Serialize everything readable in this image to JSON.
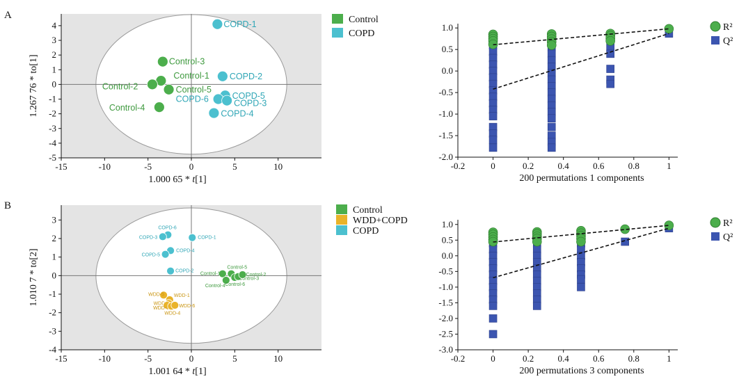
{
  "panel_labels": [
    "A",
    "B"
  ],
  "colors": {
    "control": "#4cae4c",
    "copd": "#4cc0cf",
    "wdd": "#e9b32a",
    "r2": "#4cae4c",
    "q2": "#3c55b0",
    "plot_bg": "#e4e4e4"
  },
  "chart_data": [
    {
      "type": "scatter",
      "panel": "A",
      "xlabel_prefix": "1.000 65 * ",
      "xlabel_var": "t",
      "xlabel_suffix": "[1]",
      "ylabel": "1.267 76 * to[1]",
      "xlim": [
        -15,
        15
      ],
      "ylim": [
        -5,
        4.8
      ],
      "xticks": [
        -15,
        -10,
        -5,
        0,
        5,
        10
      ],
      "yticks": [
        -5,
        -4,
        -3,
        -2,
        -1,
        0,
        1,
        2,
        3,
        4
      ],
      "ellipse": {
        "cx": 0,
        "cy": 0,
        "rx": 11,
        "ry": 4.75
      },
      "legend": [
        "Control",
        "COPD"
      ],
      "series": [
        {
          "name": "Control",
          "color": "#4cae4c",
          "points": [
            {
              "label": "Control-3",
              "x": -3.3,
              "y": 1.55
            },
            {
              "label": "Control-1",
              "x": -3.5,
              "y": 0.25
            },
            {
              "label": "Control-2",
              "x": -4.5,
              "y": 0.0
            },
            {
              "label": "Control-5",
              "x": -2.6,
              "y": -0.35
            },
            {
              "label": "Control-4",
              "x": -3.7,
              "y": -1.55
            }
          ]
        },
        {
          "name": "COPD",
          "color": "#4cc0cf",
          "points": [
            {
              "label": "COPD-1",
              "x": 3.0,
              "y": 4.1
            },
            {
              "label": "COPD-2",
              "x": 3.6,
              "y": 0.55
            },
            {
              "label": "COPD-5",
              "x": 3.9,
              "y": -0.75
            },
            {
              "label": "COPD-6",
              "x": 3.1,
              "y": -1.0
            },
            {
              "label": "COPD-3",
              "x": 4.1,
              "y": -1.1
            },
            {
              "label": "COPD-4",
              "x": 2.6,
              "y": -1.95
            }
          ]
        }
      ]
    },
    {
      "type": "scatter",
      "panel": "A-permutation",
      "xlabel": "200 permutations 1 components",
      "xlim": [
        -0.2,
        1.05
      ],
      "ylim": [
        -2.0,
        1.1
      ],
      "xticks": [
        -0.2,
        0,
        0.2,
        0.4,
        0.6,
        0.8,
        1
      ],
      "yticks": [
        -2.0,
        -1.5,
        -1.0,
        -0.5,
        0,
        0.5,
        1.0
      ],
      "legend": [
        "R²",
        "Q²"
      ],
      "series": [
        {
          "name": "R²",
          "marker": "circle",
          "points": [
            [
              0,
              0.85
            ],
            [
              0,
              0.8
            ],
            [
              0,
              0.75
            ],
            [
              0,
              0.7
            ],
            [
              0,
              0.62
            ],
            [
              0.333,
              0.86
            ],
            [
              0.333,
              0.8
            ],
            [
              0.333,
              0.74
            ],
            [
              0.333,
              0.68
            ],
            [
              0.333,
              0.6
            ],
            [
              0.667,
              0.87
            ],
            [
              0.667,
              0.82
            ],
            [
              0.667,
              0.76
            ],
            [
              0.667,
              0.7
            ],
            [
              1,
              0.98
            ]
          ]
        },
        {
          "name": "Q²",
          "marker": "square",
          "points": [
            [
              0,
              0.6
            ],
            [
              0,
              0.45
            ],
            [
              0,
              0.3
            ],
            [
              0,
              0.15
            ],
            [
              0,
              0.0
            ],
            [
              0,
              -0.15
            ],
            [
              0,
              -0.3
            ],
            [
              0,
              -0.45
            ],
            [
              0,
              -0.6
            ],
            [
              0,
              -0.75
            ],
            [
              0,
              -0.9
            ],
            [
              0,
              -1.05
            ],
            [
              0,
              -1.3
            ],
            [
              0,
              -1.45
            ],
            [
              0,
              -1.6
            ],
            [
              0,
              -1.78
            ],
            [
              0.333,
              0.55
            ],
            [
              0.333,
              0.4
            ],
            [
              0.333,
              0.25
            ],
            [
              0.333,
              0.1
            ],
            [
              0.333,
              -0.05
            ],
            [
              0.333,
              -0.2
            ],
            [
              0.333,
              -0.35
            ],
            [
              0.333,
              -0.5
            ],
            [
              0.333,
              -0.65
            ],
            [
              0.333,
              -0.8
            ],
            [
              0.333,
              -0.95
            ],
            [
              0.333,
              -1.1
            ],
            [
              0.333,
              -1.3
            ],
            [
              0.333,
              -1.5
            ],
            [
              0.333,
              -1.65
            ],
            [
              0.333,
              -1.78
            ],
            [
              0.667,
              0.55
            ],
            [
              0.667,
              0.4
            ],
            [
              0.667,
              0.05
            ],
            [
              0.667,
              -0.2
            ],
            [
              0.667,
              -0.3
            ],
            [
              1,
              0.87
            ]
          ]
        }
      ],
      "regression_lines": [
        {
          "name": "R²",
          "from": [
            0,
            0.61
          ],
          "to": [
            1,
            0.98
          ]
        },
        {
          "name": "Q²",
          "from": [
            0,
            -0.42
          ],
          "to": [
            1,
            0.87
          ]
        }
      ]
    },
    {
      "type": "scatter",
      "panel": "B",
      "xlabel_prefix": "1.001 64 * ",
      "xlabel_var": "t",
      "xlabel_suffix": "[1]",
      "ylabel": "1.010 7 * to[2]",
      "xlim": [
        -15,
        15
      ],
      "ylim": [
        -4,
        3.8
      ],
      "xticks": [
        -15,
        -10,
        -5,
        0,
        5,
        10
      ],
      "yticks": [
        -4,
        -3,
        -2,
        -1,
        0,
        1,
        2,
        3
      ],
      "ellipse": {
        "cx": 0,
        "cy": 0,
        "rx": 11,
        "ry": 3.65
      },
      "legend": [
        "Control",
        "WDD+COPD",
        "COPD"
      ],
      "series": [
        {
          "name": "Control",
          "color": "#4cae4c",
          "points": [
            {
              "label": "Control-1",
              "x": 3.6,
              "y": 0.1
            },
            {
              "label": "Control-5",
              "x": 4.6,
              "y": 0.1
            },
            {
              "label": "Control-4",
              "x": 4.0,
              "y": -0.25
            },
            {
              "label": "Control-6",
              "x": 5.0,
              "y": -0.1
            },
            {
              "label": "Control-3",
              "x": 5.4,
              "y": -0.05
            },
            {
              "label": "Control-2",
              "x": 5.9,
              "y": 0.05
            }
          ]
        },
        {
          "name": "WDD+COPD",
          "color": "#e9b32a",
          "points": [
            {
              "label": "WDD-5",
              "x": -3.2,
              "y": -1.05
            },
            {
              "label": "WDD-1",
              "x": -2.5,
              "y": -1.3
            },
            {
              "label": "WDD-2",
              "x": -2.6,
              "y": -1.5
            },
            {
              "label": "WDD-3",
              "x": -2.8,
              "y": -1.6
            },
            {
              "label": "WDD-4",
              "x": -2.3,
              "y": -1.65
            },
            {
              "label": "WDD-6",
              "x": -1.9,
              "y": -1.6
            }
          ]
        },
        {
          "name": "COPD",
          "color": "#4cc0cf",
          "points": [
            {
              "label": "COPD-6",
              "x": -2.7,
              "y": 2.2
            },
            {
              "label": "COPD-3",
              "x": -3.3,
              "y": 2.1
            },
            {
              "label": "COPD-1",
              "x": 0.1,
              "y": 2.05
            },
            {
              "label": "COPD-4",
              "x": -2.4,
              "y": 1.35
            },
            {
              "label": "COPD-5",
              "x": -3.0,
              "y": 1.15
            },
            {
              "label": "COPD-2",
              "x": -2.4,
              "y": 0.25
            }
          ]
        }
      ]
    },
    {
      "type": "scatter",
      "panel": "B-permutation",
      "xlabel": "200 permutations 3 components",
      "xlim": [
        -0.2,
        1.05
      ],
      "ylim": [
        -3.0,
        1.15
      ],
      "xticks": [
        -0.2,
        0,
        0.2,
        0.4,
        0.6,
        0.8,
        1
      ],
      "yticks": [
        -3.0,
        -2.5,
        -2.0,
        -1.5,
        -1.0,
        -0.5,
        0,
        0.5,
        1.0
      ],
      "legend": [
        "R²",
        "Q²"
      ],
      "series": [
        {
          "name": "R²",
          "marker": "circle",
          "points": [
            [
              0,
              0.75
            ],
            [
              0,
              0.68
            ],
            [
              0,
              0.6
            ],
            [
              0,
              0.52
            ],
            [
              0,
              0.45
            ],
            [
              0.25,
              0.76
            ],
            [
              0.25,
              0.7
            ],
            [
              0.25,
              0.62
            ],
            [
              0.25,
              0.55
            ],
            [
              0.25,
              0.45
            ],
            [
              0.5,
              0.8
            ],
            [
              0.5,
              0.72
            ],
            [
              0.5,
              0.64
            ],
            [
              0.5,
              0.55
            ],
            [
              0.5,
              0.45
            ],
            [
              0.75,
              0.85
            ],
            [
              1,
              0.97
            ]
          ]
        },
        {
          "name": "Q²",
          "marker": "square",
          "points": [
            [
              0,
              0.4
            ],
            [
              0,
              0.2
            ],
            [
              0,
              0.0
            ],
            [
              0,
              -0.2
            ],
            [
              0,
              -0.4
            ],
            [
              0,
              -0.6
            ],
            [
              0,
              -0.8
            ],
            [
              0,
              -1.0
            ],
            [
              0,
              -1.2
            ],
            [
              0,
              -1.4
            ],
            [
              0,
              -1.6
            ],
            [
              0,
              -2.0
            ],
            [
              0,
              -2.5
            ],
            [
              0.25,
              0.4
            ],
            [
              0.25,
              0.2
            ],
            [
              0.25,
              0.0
            ],
            [
              0.25,
              -0.2
            ],
            [
              0.25,
              -0.4
            ],
            [
              0.25,
              -0.6
            ],
            [
              0.25,
              -0.8
            ],
            [
              0.25,
              -1.0
            ],
            [
              0.25,
              -1.2
            ],
            [
              0.25,
              -1.4
            ],
            [
              0.25,
              -1.6
            ],
            [
              0.5,
              0.4
            ],
            [
              0.5,
              0.2
            ],
            [
              0.5,
              0.0
            ],
            [
              0.5,
              -0.2
            ],
            [
              0.5,
              -0.4
            ],
            [
              0.5,
              -0.6
            ],
            [
              0.5,
              -0.75
            ],
            [
              0.5,
              -1.0
            ],
            [
              0.75,
              0.45
            ],
            [
              1,
              0.88
            ]
          ]
        }
      ],
      "regression_lines": [
        {
          "name": "R²",
          "from": [
            0,
            0.44
          ],
          "to": [
            1,
            0.97
          ]
        },
        {
          "name": "Q²",
          "from": [
            0,
            -0.7
          ],
          "to": [
            1,
            0.88
          ]
        }
      ]
    }
  ]
}
